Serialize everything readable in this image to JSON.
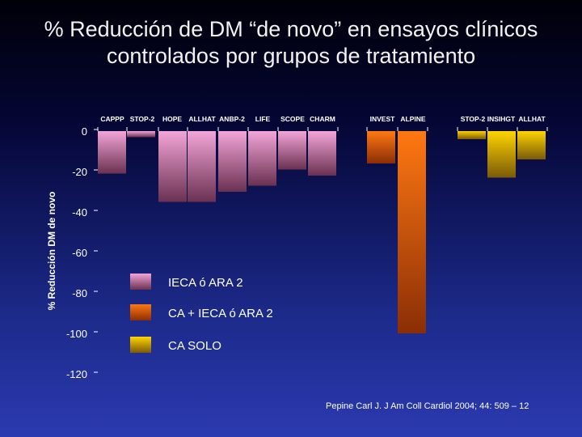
{
  "slide": {
    "title": "% Reducción de DM “de novo” en ensayos clínicos controlados por grupos de tratamiento",
    "citation": "Pepine Carl J. J Am Coll Cardiol 2004; 44: 509 – 12"
  },
  "colors": {
    "ieca": "#e58fc6",
    "ca_ieca": "#e8660a",
    "ca": "#f2c200"
  },
  "chart_data": {
    "type": "bar",
    "title": "% Reducción de DM “de novo” en ensayos clínicos controlados por grupos de tratamiento",
    "xlabel": "",
    "ylabel": "% Reducción DM de novo",
    "ylim": [
      -120,
      0
    ],
    "yticks": [
      0,
      -20,
      -40,
      -60,
      -80,
      -100,
      -120
    ],
    "grid": false,
    "legend_position": "center",
    "categories": [
      "CAPPP",
      "STOP-2",
      "HOPE",
      "ALLHAT",
      "ANBP-2",
      "LIFE",
      "SCOPE",
      "CHARM",
      "INVEST",
      "ALPINE",
      "STOP-2",
      "INSIHGT",
      "ALLHAT"
    ],
    "group_of_category": [
      "ieca",
      "ieca",
      "ieca",
      "ieca",
      "ieca",
      "ieca",
      "ieca",
      "ieca",
      "ca_ieca",
      "ca_ieca",
      "ca",
      "ca",
      "ca"
    ],
    "values": [
      -21,
      -3,
      -35,
      -35,
      -30,
      -27,
      -19,
      -22,
      -16,
      -100,
      -4,
      -23,
      -14
    ],
    "series": [
      {
        "key": "ieca",
        "name": "IECA ó ARA 2"
      },
      {
        "key": "ca_ieca",
        "name": "CA + IECA ó ARA 2"
      },
      {
        "key": "ca",
        "name": "CA SOLO"
      }
    ]
  }
}
